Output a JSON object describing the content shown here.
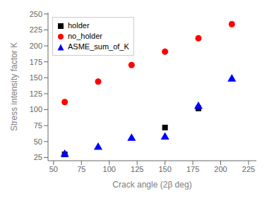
{
  "chart_data": {
    "type": "scatter",
    "x_label": "Crack angle (2β deg)",
    "y_label": "Stress intensity factor K",
    "xlim": [
      45,
      232
    ],
    "ylim": [
      20,
      252
    ],
    "xticks": [
      50,
      75,
      100,
      125,
      150,
      175,
      200,
      225
    ],
    "yticks": [
      25,
      50,
      75,
      100,
      125,
      150,
      175,
      200,
      225,
      250
    ],
    "grid": false,
    "legend": "upper left",
    "series": [
      {
        "name": "holder",
        "color": "#000000",
        "marker": "square",
        "x": [
          60,
          150,
          180
        ],
        "values": [
          30,
          72,
          102
        ]
      },
      {
        "name": "no_holder",
        "color": "#ff0000",
        "marker": "circle",
        "x": [
          60,
          90,
          120,
          150,
          180,
          210
        ],
        "values": [
          112,
          144,
          170,
          191,
          212,
          234
        ]
      },
      {
        "name": "ASME_sum_of_K",
        "color": "#0000ff",
        "marker": "triangle",
        "x": [
          60,
          90,
          120,
          150,
          180,
          210
        ],
        "values": [
          30,
          41,
          55,
          57,
          105,
          148
        ]
      }
    ]
  }
}
